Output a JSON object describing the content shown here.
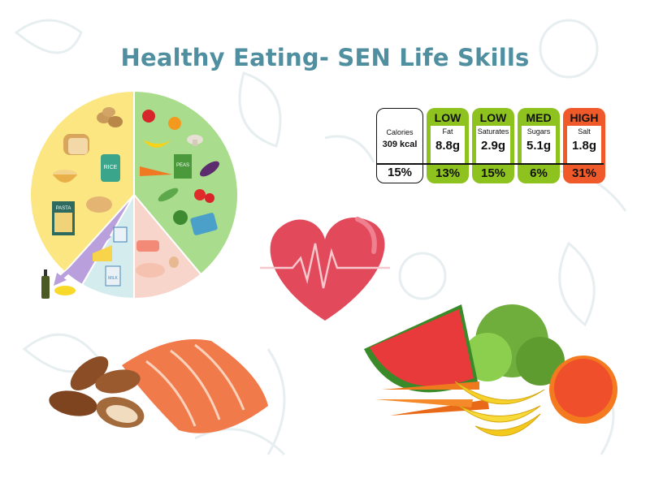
{
  "title": "Healthy Eating- SEN Life Skills",
  "nutrition_label": {
    "calories": {
      "name": "Calories",
      "value": "309 kcal",
      "percent": "15%"
    },
    "nutrients": [
      {
        "level": "LOW",
        "name": "Fat",
        "value": "8.8g",
        "percent": "13%",
        "color": "#8dc21f"
      },
      {
        "level": "LOW",
        "name": "Saturates",
        "value": "2.9g",
        "percent": "15%",
        "color": "#8dc21f"
      },
      {
        "level": "MED",
        "name": "Sugars",
        "value": "5.1g",
        "percent": "6%",
        "color": "#8dc21f"
      },
      {
        "level": "HIGH",
        "name": "Salt",
        "value": "1.8g",
        "percent": "31%",
        "color": "#f05a2a"
      }
    ]
  },
  "eatwell_plate": {
    "segments": [
      {
        "group": "fruit-vegetables",
        "color": "#a9dc8c"
      },
      {
        "group": "protein",
        "color": "#f7d5cb"
      },
      {
        "group": "dairy",
        "color": "#d5ecef"
      },
      {
        "group": "oils-spreads",
        "color": "#b9a0dc"
      },
      {
        "group": "starchy-carbohydrates",
        "color": "#fbe681"
      }
    ],
    "package_labels": {
      "pasta": "PASTA",
      "rice": "RICE",
      "milk": "MILK",
      "peas": "PEAS"
    }
  },
  "colors": {
    "title": "#4f8fa0",
    "heart": "#e24a5c",
    "background_doodle": "#e6eef0"
  }
}
